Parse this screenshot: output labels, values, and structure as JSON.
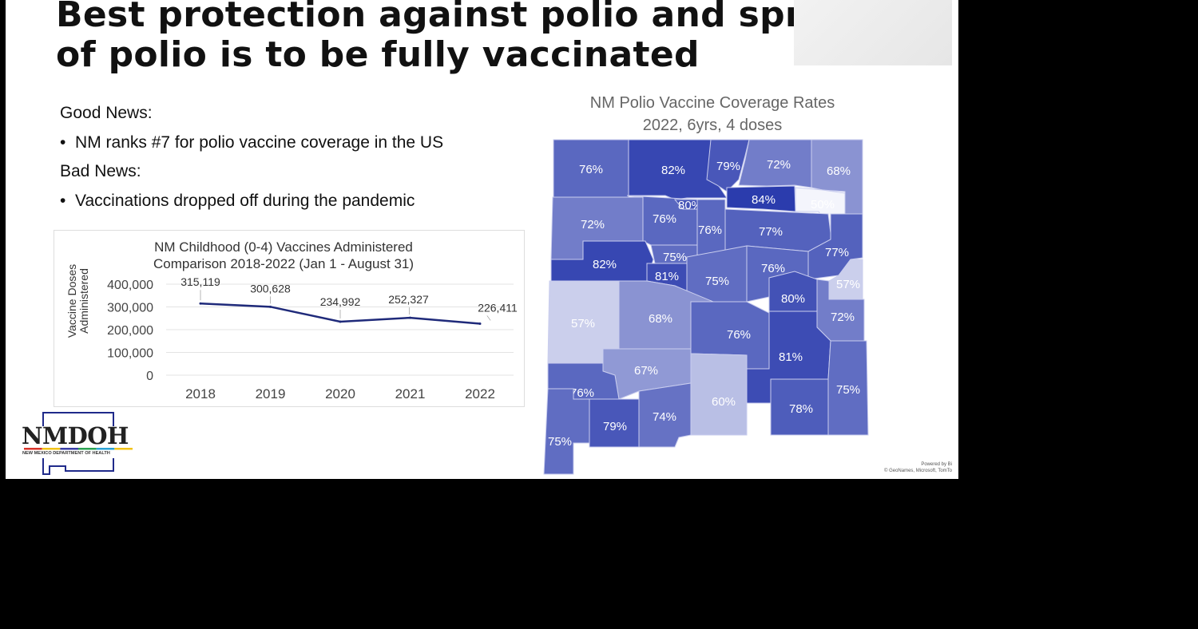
{
  "slide": {
    "title_line1": "Best protection against polio and spread",
    "title_line2": "of polio is to be fully vaccinated",
    "good_news_heading": "Good News:",
    "good_news_bullet": "NM ranks #7 for polio vaccine coverage in the US",
    "bad_news_heading": "Bad News:",
    "bad_news_bullet": "Vaccinations dropped off during the pandemic",
    "bullet_glyph": "•"
  },
  "logo": {
    "text": "NMDOH",
    "subtitle": "NEW MEXICO DEPARTMENT OF HEALTH",
    "colors": [
      "#d9342b",
      "#f2c318",
      "#3a3fa8",
      "#2aa352",
      "#2ba3d6",
      "#f2c318"
    ]
  },
  "chart_data": {
    "type": "line",
    "title_line1": "NM Childhood (0-4) Vaccines Administered",
    "title_line2": "Comparison 2018-2022 (Jan 1 - August 31)",
    "ylabel_line1": "Vaccine Doses",
    "ylabel_line2": "Administered",
    "categories": [
      "2018",
      "2019",
      "2020",
      "2021",
      "2022"
    ],
    "values": [
      315119,
      300628,
      234992,
      252327,
      226411
    ],
    "data_labels": [
      "315,119",
      "300,628",
      "234,992",
      "252,327",
      "226,411"
    ],
    "yticks": [
      "0",
      "100,000",
      "200,000",
      "300,000",
      "400,000"
    ],
    "ylim": [
      0,
      400000
    ],
    "grid": true,
    "line_color": "#1f2a7a"
  },
  "map": {
    "title_line1": "NM Polio Vaccine Coverage Rates",
    "title_line2": "2022, 6yrs, 4 doses",
    "attribution_line1": "Powered by Bi",
    "attribution_line2": "© GeoNames, Microsoft, TomTo",
    "county_values": [
      "76%",
      "82%",
      "79%",
      "72%",
      "68%",
      "84%",
      "50%",
      "72%",
      "76%",
      "80%",
      "76%",
      "77%",
      "77%",
      "82%",
      "75%",
      "81%",
      "75%",
      "76%",
      "80%",
      "57%",
      "72%",
      "57%",
      "68%",
      "76%",
      "81%",
      "75%",
      "67%",
      "60%",
      "78%",
      "76%",
      "75%",
      "79%",
      "74%"
    ],
    "color_low": "#f4f5fc",
    "color_high": "#2b3cad"
  }
}
